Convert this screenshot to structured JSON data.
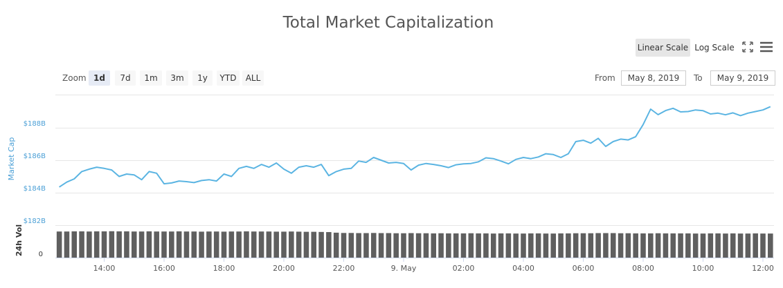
{
  "chart_data": {
    "type": "line-volume",
    "title": "Total Market Capitalization",
    "controls": {
      "zoom_label": "Zoom",
      "zoom_buttons": [
        "1d",
        "7d",
        "1m",
        "3m",
        "1y",
        "YTD",
        "ALL"
      ],
      "zoom_selected": 0,
      "scale_buttons": [
        "Linear Scale",
        "Log Scale"
      ],
      "log_scale": false,
      "from_label": "From",
      "from_value": "May 8, 2019",
      "to_label": "To",
      "to_value": "May 9, 2019"
    },
    "ylabel": "Market Cap",
    "y2label": "24h Vol",
    "xlim": [
      12.37,
      36.37
    ],
    "xticks": [
      {
        "value": 14,
        "label": "14:00"
      },
      {
        "value": 16,
        "label": "16:00"
      },
      {
        "value": 18,
        "label": "18:00"
      },
      {
        "value": 20,
        "label": "20:00"
      },
      {
        "value": 22,
        "label": "22:00"
      },
      {
        "value": 24,
        "label": "9. May"
      },
      {
        "value": 26,
        "label": "02:00"
      },
      {
        "value": 28,
        "label": "04:00"
      },
      {
        "value": 30,
        "label": "06:00"
      },
      {
        "value": 32,
        "label": "08:00"
      },
      {
        "value": 34,
        "label": "10:00"
      },
      {
        "value": 36,
        "label": "12:00"
      }
    ],
    "ylim": [
      182,
      190
    ],
    "yticks": [
      {
        "value": 182,
        "label": "$182B"
      },
      {
        "value": 184,
        "label": "$184B"
      },
      {
        "value": 186,
        "label": "$186B"
      },
      {
        "value": 188,
        "label": "$188B"
      }
    ],
    "y2lim": [
      0,
      10
    ],
    "y2ticks": [
      0
    ],
    "grid": true,
    "x": [
      12.5,
      12.75,
      13,
      13.25,
      13.5,
      13.75,
      14,
      14.25,
      14.5,
      14.75,
      15,
      15.25,
      15.5,
      15.75,
      16,
      16.25,
      16.5,
      16.75,
      17,
      17.25,
      17.5,
      17.75,
      18,
      18.25,
      18.5,
      18.75,
      19,
      19.25,
      19.5,
      19.75,
      20,
      20.25,
      20.5,
      20.75,
      21,
      21.25,
      21.5,
      21.75,
      22,
      22.25,
      22.5,
      22.75,
      23,
      23.25,
      23.5,
      23.75,
      24,
      24.25,
      24.5,
      24.75,
      25,
      25.25,
      25.5,
      25.75,
      26,
      26.25,
      26.5,
      26.75,
      27,
      27.25,
      27.5,
      27.75,
      28,
      28.25,
      28.5,
      28.75,
      29,
      29.25,
      29.5,
      29.75,
      30,
      30.25,
      30.5,
      30.75,
      31,
      31.25,
      31.5,
      31.75,
      32,
      32.25,
      32.5,
      32.75,
      33,
      33.25,
      33.5,
      33.75,
      34,
      34.25,
      34.5,
      34.75,
      35,
      35.25,
      35.5,
      35.75,
      36,
      36.25
    ],
    "series": [
      {
        "axis": "y",
        "color": "#5ab4e2",
        "values": [
          184.35,
          184.65,
          184.85,
          185.3,
          185.45,
          185.57,
          185.5,
          185.4,
          185.0,
          185.15,
          185.1,
          184.8,
          185.3,
          185.2,
          184.55,
          184.6,
          184.72,
          184.68,
          184.62,
          184.75,
          184.8,
          184.72,
          185.15,
          185.0,
          185.5,
          185.62,
          185.5,
          185.74,
          185.57,
          185.83,
          185.45,
          185.2,
          185.57,
          185.66,
          185.57,
          185.74,
          185.05,
          185.3,
          185.45,
          185.5,
          185.95,
          185.87,
          186.17,
          186.0,
          185.83,
          185.87,
          185.8,
          185.4,
          185.7,
          185.8,
          185.74,
          185.66,
          185.55,
          185.72,
          185.78,
          185.8,
          185.9,
          186.15,
          186.1,
          185.95,
          185.78,
          186.05,
          186.17,
          186.1,
          186.2,
          186.4,
          186.35,
          186.17,
          186.4,
          187.15,
          187.23,
          187.05,
          187.35,
          186.85,
          187.15,
          187.3,
          187.25,
          187.45,
          188.2,
          189.15,
          188.81,
          189.06,
          189.2,
          188.98,
          189.0,
          189.1,
          189.05,
          188.85,
          188.9,
          188.8,
          188.92,
          188.75,
          188.9,
          189.0,
          189.1,
          189.3
        ]
      },
      {
        "axis": "y2",
        "color": "#5f5f5f",
        "values": [
          9.0,
          9.0,
          9.05,
          9.05,
          9.0,
          9.05,
          9.05,
          9.1,
          9.05,
          9.05,
          9.0,
          9.0,
          9.05,
          9.0,
          9.0,
          9.0,
          9.05,
          9.0,
          9.0,
          8.95,
          9.0,
          9.0,
          8.95,
          9.0,
          9.0,
          9.05,
          9.0,
          9.0,
          9.0,
          8.95,
          8.95,
          9.0,
          8.95,
          8.9,
          8.9,
          8.85,
          8.8,
          8.6,
          8.5,
          8.5,
          8.45,
          8.45,
          8.5,
          8.45,
          8.45,
          8.4,
          8.4,
          8.45,
          8.4,
          8.4,
          8.35,
          8.4,
          8.35,
          8.35,
          8.35,
          8.4,
          8.35,
          8.35,
          8.3,
          8.35,
          8.35,
          8.3,
          8.3,
          8.35,
          8.35,
          8.3,
          8.3,
          8.35,
          8.35,
          8.4,
          8.4,
          8.4,
          8.45,
          8.45,
          8.45,
          8.4,
          8.4,
          8.35,
          8.35,
          8.35,
          8.4,
          8.35,
          8.35,
          8.35,
          8.35,
          8.3,
          8.3,
          8.35,
          8.35,
          8.3,
          8.35,
          8.3,
          8.3,
          8.35,
          8.3,
          8.3
        ]
      }
    ]
  }
}
